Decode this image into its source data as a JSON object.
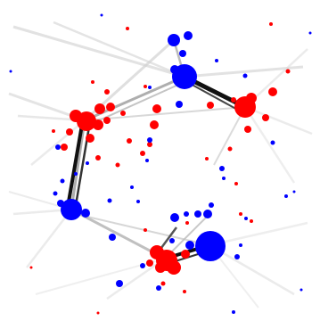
{
  "network": {
    "colors": {
      "red": "#ff0000",
      "blue": "#0000ff",
      "edge_strong": "#111111",
      "edge_faint": "#cccccc"
    }
  }
}
